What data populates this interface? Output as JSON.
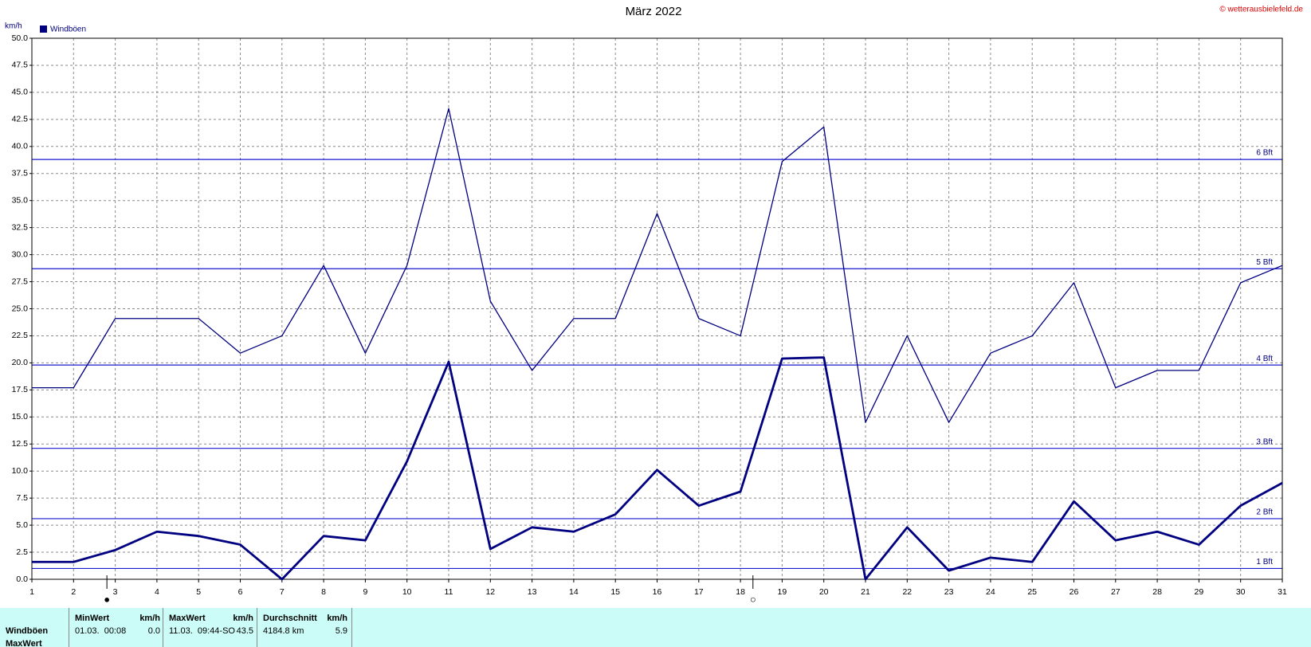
{
  "chart_data": {
    "type": "line",
    "title": "März 2022",
    "y_label": "km/h",
    "copyright": "© wetterausbielefeld.de",
    "x": [
      1,
      2,
      3,
      4,
      5,
      6,
      7,
      8,
      9,
      10,
      11,
      12,
      13,
      14,
      15,
      16,
      17,
      18,
      19,
      20,
      21,
      22,
      23,
      24,
      25,
      26,
      27,
      28,
      29,
      30,
      31
    ],
    "series": [
      {
        "name": "Windböen",
        "color": "#000080",
        "width": 1.3,
        "values": [
          17.7,
          17.7,
          24.1,
          24.1,
          24.1,
          20.9,
          22.5,
          29.0,
          20.9,
          29.0,
          43.5,
          25.7,
          19.3,
          24.1,
          24.1,
          33.8,
          24.1,
          22.5,
          38.6,
          41.8,
          14.5,
          22.5,
          14.5,
          20.9,
          22.5,
          27.4,
          17.7,
          19.3,
          19.3,
          27.4,
          29.0
        ]
      },
      {
        "color": "#000080",
        "width": 2.8,
        "values": [
          1.6,
          1.6,
          2.7,
          4.4,
          4.0,
          3.2,
          0.0,
          4.0,
          3.6,
          10.9,
          20.1,
          2.8,
          4.8,
          4.4,
          6.0,
          10.1,
          6.8,
          8.1,
          20.4,
          20.5,
          0.0,
          4.8,
          0.8,
          2.0,
          1.6,
          7.2,
          3.6,
          4.4,
          3.2,
          6.8,
          8.9
        ]
      }
    ],
    "reference_lines": [
      {
        "value": 1.0,
        "label": "1 Bft"
      },
      {
        "value": 5.6,
        "label": "2 Bft"
      },
      {
        "value": 12.1,
        "label": "3 Bft"
      },
      {
        "value": 19.8,
        "label": "4 Bft"
      },
      {
        "value": 28.7,
        "label": "5 Bft"
      },
      {
        "value": 38.8,
        "label": "6 Bft"
      }
    ],
    "reference_color": "#1a1ad0",
    "annotations": [
      {
        "text": "●",
        "x": 2.8
      },
      {
        "text": "○",
        "x": 18.3
      }
    ],
    "xlim": [
      1,
      31
    ],
    "xticks": [
      1,
      2,
      3,
      4,
      5,
      6,
      7,
      8,
      9,
      10,
      11,
      12,
      13,
      14,
      15,
      16,
      17,
      18,
      19,
      20,
      21,
      22,
      23,
      24,
      25,
      26,
      27,
      28,
      29,
      30,
      31
    ],
    "ylim": [
      0,
      50
    ],
    "yticks": [
      {
        "value": 0,
        "label": "0.0"
      },
      {
        "value": 2.5,
        "label": "2.5"
      },
      {
        "value": 5,
        "label": "5.0"
      },
      {
        "value": 7.5,
        "label": "7.5"
      },
      {
        "value": 10,
        "label": "10.0"
      },
      {
        "value": 12.5,
        "label": "12.5"
      },
      {
        "value": 15,
        "label": "15.0"
      },
      {
        "value": 17.5,
        "label": "17.5"
      },
      {
        "value": 20,
        "label": "20.0"
      },
      {
        "value": 22.5,
        "label": "22.5"
      },
      {
        "value": 25,
        "label": "25.0"
      },
      {
        "value": 27.5,
        "label": "27.5"
      },
      {
        "value": 30,
        "label": "30.0"
      },
      {
        "value": 32.5,
        "label": "32.5"
      },
      {
        "value": 35,
        "label": "35.0"
      },
      {
        "value": 37.5,
        "label": "37.5"
      },
      {
        "value": 40,
        "label": "40.0"
      },
      {
        "value": 42.5,
        "label": "42.5"
      },
      {
        "value": 45,
        "label": "45.0"
      },
      {
        "value": 47.5,
        "label": "47.5"
      },
      {
        "value": 50,
        "label": "50.0"
      }
    ],
    "grid": true
  },
  "stats_table": {
    "row_labels": [
      "Windböen",
      "MaxWert"
    ],
    "columns": [
      {
        "header": "MinWert",
        "unit": "km/h",
        "time": "01.03.  00:08",
        "value": "0.0"
      },
      {
        "header": "MaxWert",
        "unit": "km/h",
        "time": "11.03.  09:44-SO",
        "value": "43.5"
      },
      {
        "header": "Durchschnitt",
        "unit": "km/h",
        "time": "4184.8 km",
        "value": "5.9"
      }
    ]
  }
}
